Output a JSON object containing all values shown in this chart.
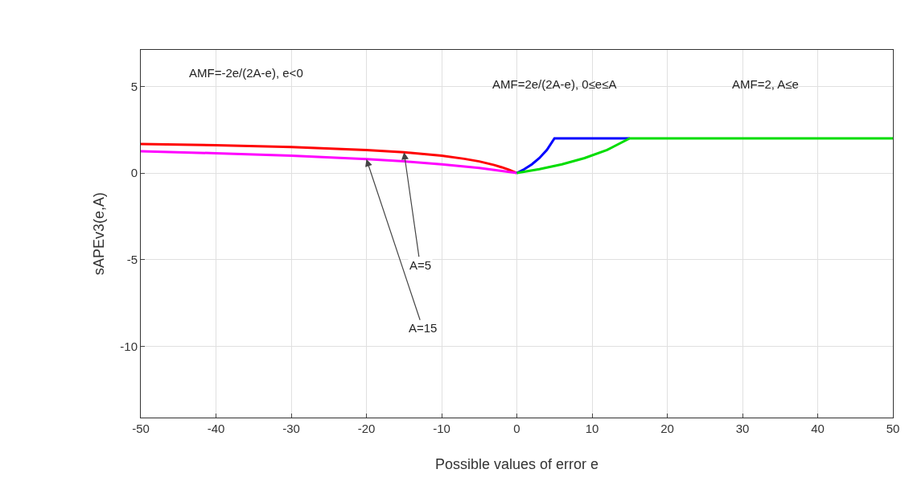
{
  "chart_data": {
    "type": "line",
    "xlabel": "Possible values of error e",
    "ylabel": "sAPEv3(e,A)",
    "xlim": [
      -50,
      50
    ],
    "ylim": [
      -14.1,
      7.1
    ],
    "xticks": [
      -50,
      -40,
      -30,
      -20,
      -10,
      0,
      10,
      20,
      30,
      40,
      50
    ],
    "yticks": [
      -10,
      -5,
      0,
      5
    ],
    "grid": true,
    "marker": "none",
    "line_style": "solid",
    "series": [
      {
        "color": "#ff0000",
        "x": [
          -50,
          -40,
          -30,
          -20,
          -15,
          -10,
          -7,
          -5,
          -3,
          -2,
          -1,
          0
        ],
        "values": [
          1.67,
          1.6,
          1.5,
          1.33,
          1.2,
          1.0,
          0.82,
          0.67,
          0.46,
          0.33,
          0.18,
          0
        ]
      },
      {
        "color": "#ff00ff",
        "x": [
          -50,
          -40,
          -30,
          -20,
          -15,
          -10,
          -5,
          -3,
          0
        ],
        "values": [
          1.25,
          1.14,
          1.0,
          0.8,
          0.67,
          0.5,
          0.29,
          0.18,
          0
        ]
      },
      {
        "color": "#0000ff",
        "x": [
          0,
          1,
          2,
          3,
          4,
          5,
          15
        ],
        "values": [
          0,
          0.22,
          0.5,
          0.86,
          1.33,
          2,
          2
        ]
      },
      {
        "color": "#00dd00",
        "x": [
          0,
          3,
          6,
          9,
          12,
          15,
          50
        ],
        "values": [
          0,
          0.22,
          0.5,
          0.86,
          1.33,
          2,
          2
        ]
      }
    ],
    "annotations": [
      "AMF=-2e/(2A-e), e<0",
      "AMF=2e/(2A-e), 0≤e≤A",
      "AMF=2, A≤e",
      {
        "text": "A=5",
        "x": -15,
        "y": 1.2
      },
      {
        "text": "A=15",
        "x": -20,
        "y": 0.8
      }
    ]
  }
}
